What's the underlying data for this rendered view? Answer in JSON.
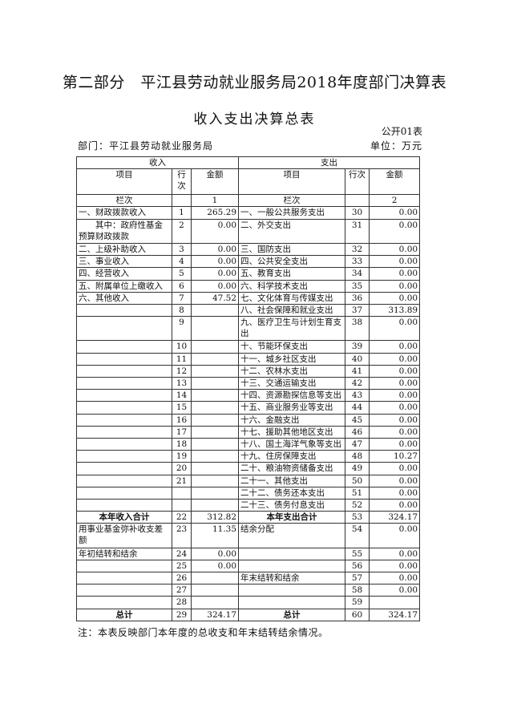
{
  "title": "第二部分　平江县劳动就业服务局2018年度部门决算表",
  "subtitle": "收入支出决算总表",
  "form_no": "公开01表",
  "department": "部门：平江县劳动就业服务局",
  "unit": "单位：万元",
  "headers": {
    "income": "收入",
    "expense": "支出",
    "item": "项目",
    "line": "行次",
    "amount": "金额",
    "col_label": "栏次",
    "col_income": "1",
    "col_expense": "2"
  },
  "rows": [
    {
      "in_item": "一、财政拨款收入",
      "in_line": "1",
      "in_amt": "265.29",
      "ex_item": "一、一般公共服务支出",
      "ex_line": "30",
      "ex_amt": "0.00"
    },
    {
      "in_item": "　　其中：政府性基金预算财政拨款",
      "in_line": "2",
      "in_amt": "0.00",
      "ex_item": "二、外交支出",
      "ex_line": "31",
      "ex_amt": "0.00",
      "tall": true
    },
    {
      "in_item": "二、上级补助收入",
      "in_line": "3",
      "in_amt": "0.00",
      "ex_item": "三、国防支出",
      "ex_line": "32",
      "ex_amt": "0.00"
    },
    {
      "in_item": "三、事业收入",
      "in_line": "4",
      "in_amt": "0.00",
      "ex_item": "四、公共安全支出",
      "ex_line": "33",
      "ex_amt": "0.00"
    },
    {
      "in_item": "四、经营收入",
      "in_line": "5",
      "in_amt": "0.00",
      "ex_item": "五、教育支出",
      "ex_line": "34",
      "ex_amt": "0.00"
    },
    {
      "in_item": "五、附属单位上缴收入",
      "in_line": "6",
      "in_amt": "0.00",
      "ex_item": "六、科学技术支出",
      "ex_line": "35",
      "ex_amt": "0.00"
    },
    {
      "in_item": "六、其他收入",
      "in_line": "7",
      "in_amt": "47.52",
      "ex_item": "七、文化体育与传媒支出",
      "ex_line": "36",
      "ex_amt": "0.00"
    },
    {
      "in_item": "",
      "in_line": "8",
      "in_amt": "",
      "ex_item": "八、社会保障和就业支出",
      "ex_line": "37",
      "ex_amt": "313.89"
    },
    {
      "in_item": "",
      "in_line": "9",
      "in_amt": "",
      "ex_item": "九、医疗卫生与计划生育支出",
      "ex_line": "38",
      "ex_amt": "0.00",
      "tall": true
    },
    {
      "in_item": "",
      "in_line": "10",
      "in_amt": "",
      "ex_item": "十、节能环保支出",
      "ex_line": "39",
      "ex_amt": "0.00"
    },
    {
      "in_item": "",
      "in_line": "11",
      "in_amt": "",
      "ex_item": "十一、城乡社区支出",
      "ex_line": "40",
      "ex_amt": "0.00"
    },
    {
      "in_item": "",
      "in_line": "12",
      "in_amt": "",
      "ex_item": "十二、农林水支出",
      "ex_line": "41",
      "ex_amt": "0.00"
    },
    {
      "in_item": "",
      "in_line": "13",
      "in_amt": "",
      "ex_item": "十三、交通运输支出",
      "ex_line": "42",
      "ex_amt": "0.00"
    },
    {
      "in_item": "",
      "in_line": "14",
      "in_amt": "",
      "ex_item": "十四、资源勘探信息等支出",
      "ex_line": "43",
      "ex_amt": "0.00"
    },
    {
      "in_item": "",
      "in_line": "15",
      "in_amt": "",
      "ex_item": "十五、商业服务业等支出",
      "ex_line": "44",
      "ex_amt": "0.00"
    },
    {
      "in_item": "",
      "in_line": "16",
      "in_amt": "",
      "ex_item": "十六、金融支出",
      "ex_line": "45",
      "ex_amt": "0.00"
    },
    {
      "in_item": "",
      "in_line": "17",
      "in_amt": "",
      "ex_item": "十七、援助其他地区支出",
      "ex_line": "46",
      "ex_amt": "0.00"
    },
    {
      "in_item": "",
      "in_line": "18",
      "in_amt": "",
      "ex_item": "十八、国土海洋气象等支出",
      "ex_line": "47",
      "ex_amt": "0.00"
    },
    {
      "in_item": "",
      "in_line": "19",
      "in_amt": "",
      "ex_item": "十九、住房保障支出",
      "ex_line": "48",
      "ex_amt": "10.27"
    },
    {
      "in_item": "",
      "in_line": "20",
      "in_amt": "",
      "ex_item": "二十、粮油物资储备支出",
      "ex_line": "49",
      "ex_amt": "0.00"
    },
    {
      "in_item": "",
      "in_line": "21",
      "in_amt": "",
      "ex_item": "二十一、其他支出",
      "ex_line": "50",
      "ex_amt": "0.00"
    },
    {
      "in_item": "",
      "in_line": "",
      "in_amt": "",
      "ex_item": "二十二、债务还本支出",
      "ex_line": "51",
      "ex_amt": "0.00"
    },
    {
      "in_item": "",
      "in_line": "",
      "in_amt": "",
      "ex_item": "二十三、债务付息支出",
      "ex_line": "52",
      "ex_amt": "0.00"
    },
    {
      "in_item": "本年收入合计",
      "in_line": "22",
      "in_amt": "312.82",
      "ex_item": "本年支出合计",
      "ex_line": "53",
      "ex_amt": "324.17",
      "bold": true
    },
    {
      "in_item": "用事业基金弥补收支差额",
      "in_line": "23",
      "in_amt": "11.35",
      "ex_item": "结余分配",
      "ex_line": "54",
      "ex_amt": "0.00",
      "tall": true
    },
    {
      "in_item": "年初结转和结余",
      "in_line": "24",
      "in_amt": "0.00",
      "ex_item": "",
      "ex_line": "55",
      "ex_amt": "0.00"
    },
    {
      "in_item": "",
      "in_line": "25",
      "in_amt": "0.00",
      "ex_item": "",
      "ex_line": "56",
      "ex_amt": "0.00"
    },
    {
      "in_item": "",
      "in_line": "26",
      "in_amt": "",
      "ex_item": "年末结转和结余",
      "ex_line": "57",
      "ex_amt": "0.00"
    },
    {
      "in_item": "",
      "in_line": "27",
      "in_amt": "",
      "ex_item": "",
      "ex_line": "58",
      "ex_amt": "0.00"
    },
    {
      "in_item": "",
      "in_line": "28",
      "in_amt": "",
      "ex_item": "",
      "ex_line": "59",
      "ex_amt": ""
    },
    {
      "in_item": "总计",
      "in_line": "29",
      "in_amt": "324.17",
      "ex_item": "总计",
      "ex_line": "60",
      "ex_amt": "324.17",
      "bold": true
    }
  ],
  "note": "注：本表反映部门本年度的总收支和年末结转结余情况。"
}
